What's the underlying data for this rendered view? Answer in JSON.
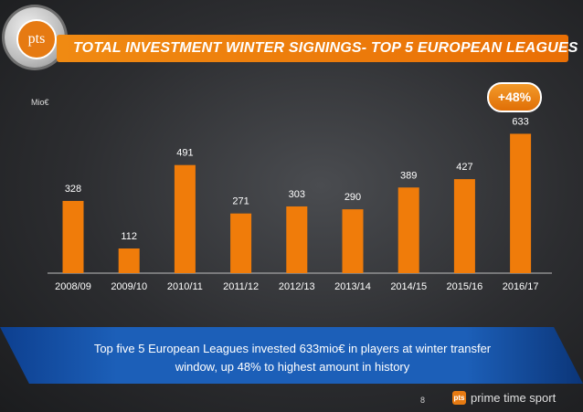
{
  "header": {
    "title": "TOTAL INVESTMENT WINTER SIGNINGS- TOP 5 EUROPEAN LEAGUES",
    "logo_text": "pts"
  },
  "badge": {
    "text": "+48%"
  },
  "chart_data": {
    "type": "bar",
    "ylabel": "Mio€",
    "categories": [
      "2008/09",
      "2009/10",
      "2010/11",
      "2011/12",
      "2012/13",
      "2013/14",
      "2014/15",
      "2015/16",
      "2016/17"
    ],
    "values": [
      328,
      112,
      491,
      271,
      303,
      290,
      389,
      427,
      633
    ],
    "bar_color": "#f07c0a",
    "grid": false
  },
  "callout": {
    "text": "Top five 5 European Leagues invested 633mio€ in players at winter transfer window, up 48% to highest amount in history"
  },
  "footer": {
    "page_number": "8",
    "brand": "prime time sport",
    "brand_icon": "pts"
  }
}
